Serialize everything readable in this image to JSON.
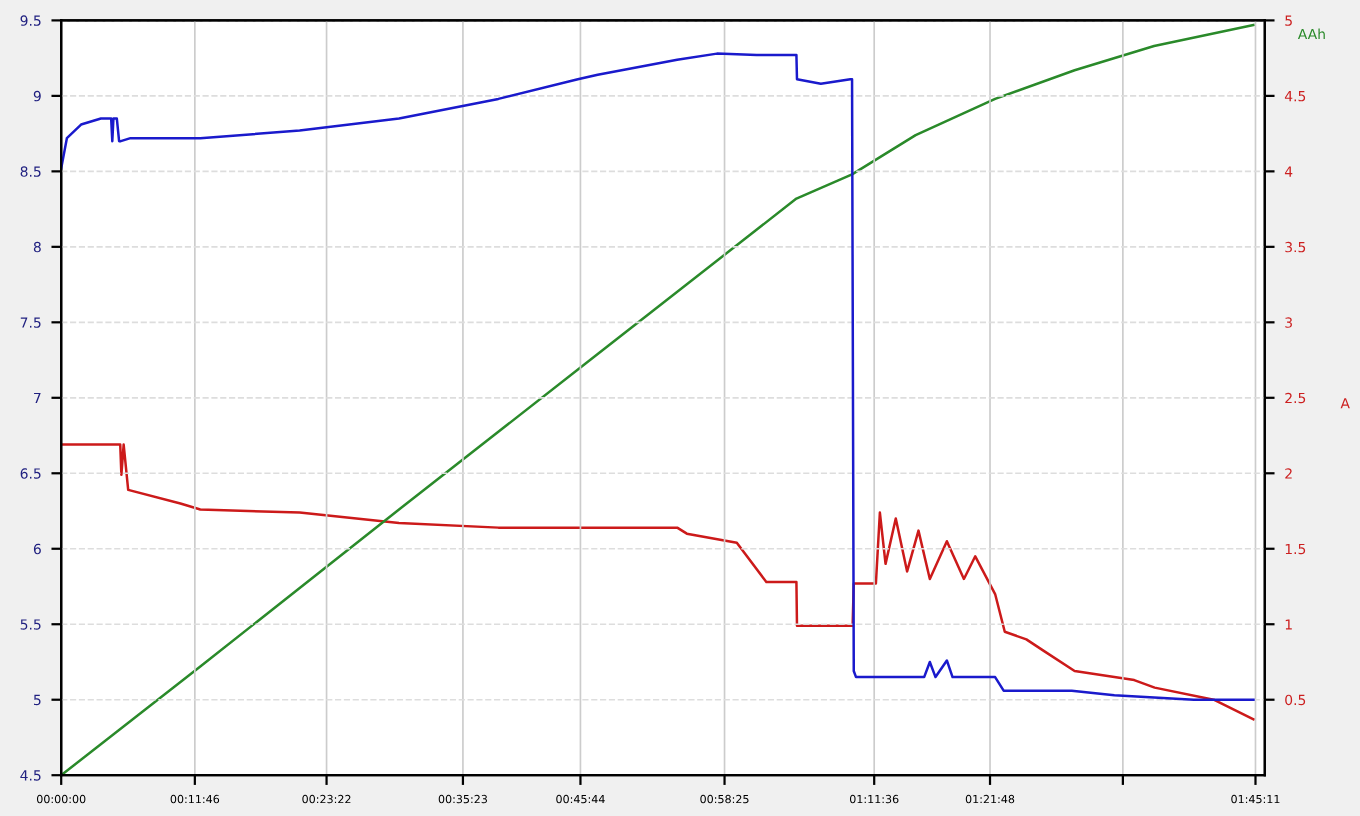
{
  "chart_data": {
    "type": "line",
    "y2label": "A",
    "annotations": [
      "AAh"
    ],
    "grid": true,
    "marker": "none",
    "line_style": "solid",
    "xlim": [
      0,
      106
    ],
    "xticks": [
      {
        "value": 0,
        "label": "00:00:00"
      },
      {
        "value": 11.77,
        "label": "00:11:46"
      },
      {
        "value": 23.37,
        "label": "00:23:22"
      },
      {
        "value": 35.38,
        "label": "00:35:23"
      },
      {
        "value": 45.73,
        "label": "00:45:44"
      },
      {
        "value": 58.42,
        "label": "00:58:25"
      },
      {
        "value": 71.6,
        "label": "01:11:36"
      },
      {
        "value": 81.8,
        "label": "01:21:48"
      },
      {
        "value": 93.5,
        "label": null
      },
      {
        "value": 105.18,
        "label": "01:45:11"
      }
    ],
    "ylim": [
      4.5,
      9.5
    ],
    "yticks": [
      4.5,
      5,
      5.5,
      6,
      6.5,
      7,
      7.5,
      8,
      8.5,
      9,
      9.5
    ],
    "y2lim": [
      0,
      5
    ],
    "y2ticks": [
      0.5,
      1,
      1.5,
      2,
      2.5,
      3,
      3.5,
      4,
      4.5,
      5
    ],
    "series": [
      {
        "color": "#1a1acc",
        "x": [
          0,
          0.5,
          1.75,
          3.5,
          4.4,
          4.5,
          4.6,
          4.9,
          5.1,
          5.25,
          6.1,
          12.25,
          21,
          29.75,
          38.5,
          45.5,
          47.25,
          54.25,
          57.75,
          61.25,
          64.75,
          64.8,
          66.9,
          69.5,
          69.65,
          69.8,
          70,
          76,
          76.5,
          77,
          78,
          78.5,
          82.25,
          83,
          89,
          92.75,
          99.75,
          105
        ],
        "values": [
          8.52,
          8.72,
          8.81,
          8.85,
          8.85,
          8.7,
          8.85,
          8.85,
          8.7,
          8.7,
          8.72,
          8.72,
          8.77,
          8.85,
          8.98,
          9.11,
          9.14,
          9.24,
          9.28,
          9.27,
          9.27,
          9.11,
          9.08,
          9.11,
          9.11,
          5.19,
          5.15,
          5.15,
          5.25,
          5.15,
          5.26,
          5.15,
          5.15,
          5.06,
          5.06,
          5.03,
          5.0,
          5.0
        ]
      },
      {
        "color": "#cc1a1a",
        "axis": "y2",
        "x": [
          0,
          5.2,
          5.3,
          5.5,
          5.9,
          10.5,
          12.25,
          21,
          29.75,
          38.5,
          54.25,
          55.1,
          59.5,
          62.1,
          64.75,
          64.8,
          69.7,
          69.8,
          71.75,
          72.1,
          72.6,
          73.5,
          74.5,
          75.5,
          76.5,
          78,
          79.5,
          80.5,
          82.25,
          83.1,
          85,
          86.6,
          89.25,
          94.5,
          96.3,
          101.5,
          105
        ],
        "values": [
          2.19,
          2.19,
          1.99,
          2.19,
          1.89,
          1.8,
          1.76,
          1.74,
          1.67,
          1.64,
          1.64,
          1.6,
          1.54,
          1.28,
          1.28,
          0.99,
          0.99,
          1.27,
          1.27,
          1.74,
          1.4,
          1.7,
          1.35,
          1.62,
          1.3,
          1.55,
          1.3,
          1.45,
          1.2,
          0.95,
          0.9,
          0.82,
          0.69,
          0.63,
          0.58,
          0.5,
          0.37
        ]
      },
      {
        "color": "#2a8a2a",
        "axis": "y2",
        "x": [
          0,
          12.25,
          29.75,
          47.25,
          64.75,
          69.65,
          75.25,
          82.25,
          89.25,
          96.25,
          105
        ],
        "values": [
          0,
          0.72,
          1.76,
          2.79,
          3.82,
          3.98,
          4.24,
          4.48,
          4.67,
          4.83,
          4.97
        ]
      }
    ]
  }
}
